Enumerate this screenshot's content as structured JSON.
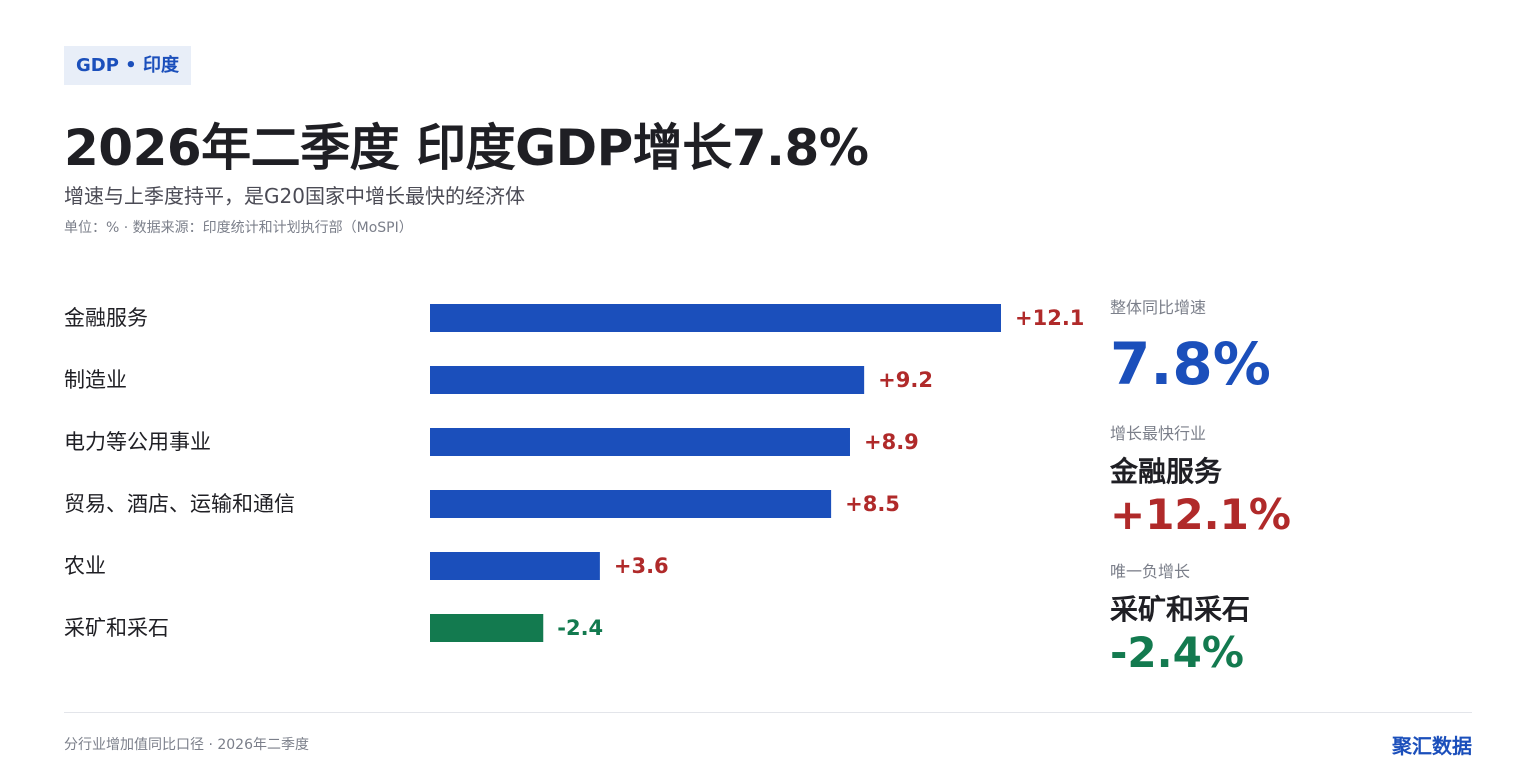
{
  "header": {
    "tag": "GDP • 印度",
    "title": "2026年二季度 印度GDP增长7.8%",
    "subtitle": "增速与上季度持平，是G20国家中增长最快的经济体",
    "meta": "单位：% · 数据来源：印度统计和计划执行部（MoSPI）"
  },
  "chart_data": {
    "type": "bar",
    "orientation": "horizontal",
    "categories": [
      "金融服务",
      "制造业",
      "电力等公用事业",
      "贸易、酒店、运输和通信",
      "农业",
      "采矿和采石"
    ],
    "values": [
      12.1,
      9.2,
      8.9,
      8.5,
      3.6,
      -2.4
    ],
    "value_labels": [
      "+12.1",
      "+9.2",
      "+8.9",
      "+8.5",
      "+3.6",
      "-2.4"
    ],
    "colors": {
      "positive_bar": "#1b4fbb",
      "negative_bar": "#137a4f",
      "positive_label": "#b02a2a",
      "negative_label": "#137a4f"
    },
    "grid": false,
    "legend": "none"
  },
  "sidebar": {
    "overall_label": "整体同比增速",
    "overall_value": "7.8%",
    "fastest_label": "增长最快行业",
    "fastest_name": "金融服务",
    "fastest_value": "+12.1%",
    "negative_label": "唯一负增长",
    "negative_name": "采矿和采石",
    "negative_value": "-2.4%"
  },
  "footer": {
    "note": "分行业增加值同比口径 · 2026年二季度",
    "brand": "聚汇数据"
  }
}
